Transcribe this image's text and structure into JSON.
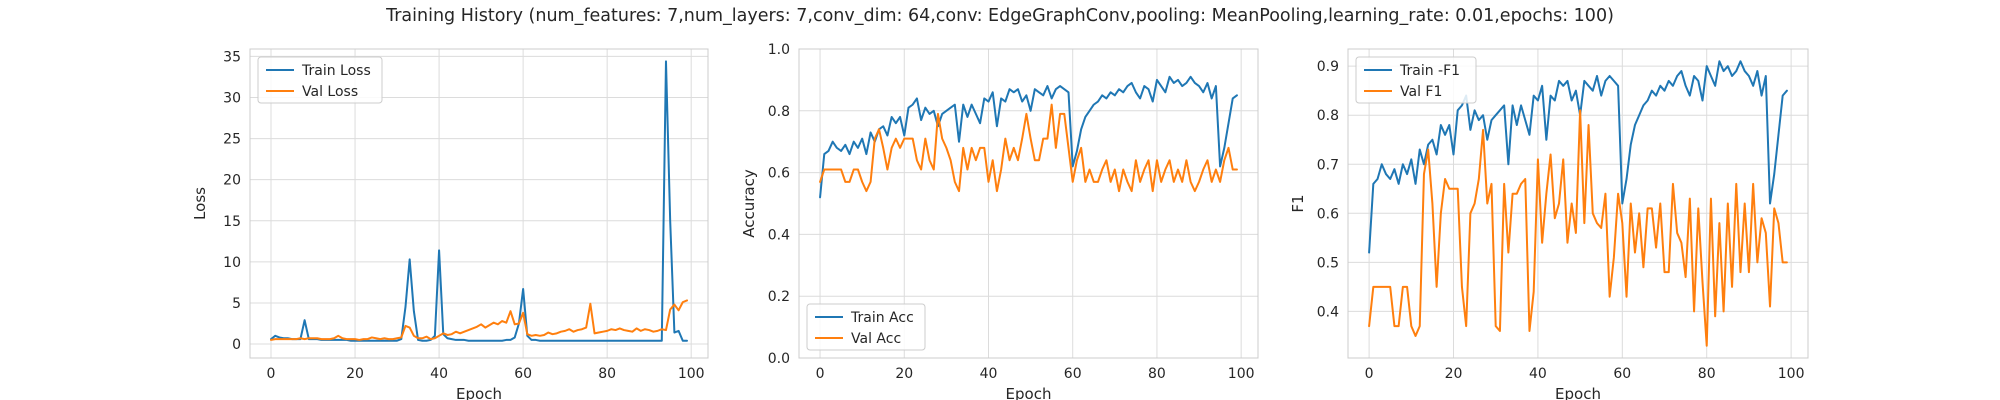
{
  "figure_title": "Training History (num_features: 7,num_layers: 7,conv_dim: 64,conv: EdgeGraphConv,pooling: MeanPooling,learning_rate: 0.01,epochs: 100)",
  "colors": {
    "train": "#1f77b4",
    "val": "#ff7f0e",
    "grid": "#dcdcdc",
    "spine": "#cccccc"
  },
  "chart_data": [
    {
      "type": "line",
      "xlabel": "Epoch",
      "ylabel": "Loss",
      "xlim": [
        -5,
        104
      ],
      "ylim": [
        -1.7,
        35.9
      ],
      "xticks": [
        0,
        20,
        40,
        60,
        80,
        100
      ],
      "yticks": [
        0,
        5,
        10,
        15,
        20,
        25,
        30,
        35
      ],
      "ytick_labels": [
        "0",
        "5",
        "10",
        "15",
        "20",
        "25",
        "30",
        "35"
      ],
      "legend_position": "upper left",
      "series": [
        {
          "name": "Train Loss",
          "color": "#1f77b4",
          "values": [
            0.6,
            1.0,
            0.8,
            0.7,
            0.7,
            0.6,
            0.6,
            0.6,
            2.9,
            0.6,
            0.6,
            0.6,
            0.5,
            0.5,
            0.5,
            0.5,
            0.5,
            0.5,
            0.5,
            0.4,
            0.4,
            0.4,
            0.4,
            0.4,
            0.4,
            0.4,
            0.4,
            0.4,
            0.4,
            0.4,
            0.4,
            0.6,
            4.5,
            10.3,
            4.0,
            0.5,
            0.4,
            0.4,
            0.5,
            1.0,
            11.4,
            1.2,
            0.7,
            0.6,
            0.5,
            0.5,
            0.5,
            0.4,
            0.4,
            0.4,
            0.4,
            0.4,
            0.4,
            0.4,
            0.4,
            0.4,
            0.5,
            0.5,
            0.8,
            2.5,
            6.7,
            1.0,
            0.5,
            0.5,
            0.4,
            0.4,
            0.4,
            0.4,
            0.4,
            0.4,
            0.4,
            0.4,
            0.4,
            0.4,
            0.4,
            0.4,
            0.4,
            0.4,
            0.4,
            0.4,
            0.4,
            0.4,
            0.4,
            0.4,
            0.4,
            0.4,
            0.4,
            0.4,
            0.4,
            0.4,
            0.4,
            0.4,
            0.4,
            0.4,
            34.4,
            15.0,
            1.4,
            1.6,
            0.4,
            0.4
          ]
        },
        {
          "name": "Val Loss",
          "color": "#ff7f0e",
          "values": [
            0.5,
            0.6,
            0.6,
            0.6,
            0.6,
            0.6,
            0.6,
            0.7,
            0.6,
            0.7,
            0.7,
            0.7,
            0.6,
            0.6,
            0.6,
            0.7,
            1.0,
            0.7,
            0.6,
            0.6,
            0.6,
            0.5,
            0.6,
            0.6,
            0.8,
            0.7,
            0.6,
            0.7,
            0.6,
            0.6,
            0.7,
            0.8,
            2.2,
            2.0,
            1.0,
            0.7,
            0.7,
            0.9,
            0.6,
            0.7,
            1.0,
            1.3,
            1.1,
            1.2,
            1.5,
            1.3,
            1.5,
            1.7,
            1.9,
            2.1,
            2.4,
            2.0,
            2.3,
            2.6,
            2.4,
            2.8,
            2.6,
            4.0,
            2.4,
            2.5,
            3.8,
            1.2,
            1.0,
            1.1,
            1.0,
            1.1,
            1.4,
            1.2,
            1.3,
            1.5,
            1.6,
            1.8,
            1.5,
            1.7,
            1.8,
            2.0,
            4.9,
            1.3,
            1.4,
            1.5,
            1.6,
            1.8,
            1.7,
            1.9,
            1.7,
            1.6,
            1.5,
            1.9,
            1.6,
            1.8,
            1.7,
            1.5,
            1.6,
            1.8,
            1.7,
            4.2,
            4.8,
            4.1,
            5.1,
            5.3
          ]
        }
      ]
    },
    {
      "type": "line",
      "xlabel": "Epoch",
      "ylabel": "Accuracy",
      "xlim": [
        -5,
        104
      ],
      "ylim": [
        0.0,
        1.0
      ],
      "xticks": [
        0,
        20,
        40,
        60,
        80,
        100
      ],
      "yticks": [
        0.0,
        0.2,
        0.4,
        0.6,
        0.8,
        1.0
      ],
      "ytick_labels": [
        "0.0",
        "0.2",
        "0.4",
        "0.6",
        "0.8",
        "1.0"
      ],
      "legend_position": "lower left",
      "series": [
        {
          "name": "Train Acc",
          "color": "#1f77b4",
          "values": [
            0.52,
            0.66,
            0.67,
            0.7,
            0.68,
            0.67,
            0.69,
            0.66,
            0.7,
            0.68,
            0.71,
            0.66,
            0.73,
            0.7,
            0.74,
            0.75,
            0.72,
            0.78,
            0.76,
            0.78,
            0.72,
            0.81,
            0.82,
            0.84,
            0.77,
            0.81,
            0.79,
            0.8,
            0.75,
            0.79,
            0.8,
            0.81,
            0.82,
            0.7,
            0.82,
            0.78,
            0.82,
            0.79,
            0.76,
            0.84,
            0.83,
            0.86,
            0.75,
            0.84,
            0.83,
            0.87,
            0.86,
            0.87,
            0.83,
            0.85,
            0.8,
            0.87,
            0.86,
            0.85,
            0.88,
            0.84,
            0.87,
            0.88,
            0.87,
            0.86,
            0.62,
            0.67,
            0.74,
            0.78,
            0.8,
            0.82,
            0.83,
            0.85,
            0.84,
            0.86,
            0.85,
            0.87,
            0.86,
            0.88,
            0.89,
            0.86,
            0.84,
            0.88,
            0.87,
            0.83,
            0.9,
            0.88,
            0.86,
            0.91,
            0.89,
            0.9,
            0.88,
            0.89,
            0.91,
            0.89,
            0.88,
            0.86,
            0.89,
            0.84,
            0.88,
            0.62,
            0.68,
            0.76,
            0.84,
            0.85
          ]
        },
        {
          "name": "Val Acc",
          "color": "#ff7f0e",
          "values": [
            0.57,
            0.61,
            0.61,
            0.61,
            0.61,
            0.61,
            0.57,
            0.57,
            0.61,
            0.61,
            0.57,
            0.54,
            0.57,
            0.71,
            0.74,
            0.68,
            0.61,
            0.68,
            0.71,
            0.68,
            0.71,
            0.71,
            0.71,
            0.64,
            0.61,
            0.71,
            0.64,
            0.61,
            0.79,
            0.71,
            0.68,
            0.64,
            0.57,
            0.54,
            0.68,
            0.61,
            0.68,
            0.64,
            0.68,
            0.68,
            0.57,
            0.64,
            0.54,
            0.61,
            0.71,
            0.64,
            0.68,
            0.64,
            0.71,
            0.79,
            0.71,
            0.64,
            0.64,
            0.71,
            0.71,
            0.82,
            0.68,
            0.79,
            0.79,
            0.68,
            0.57,
            0.64,
            0.68,
            0.57,
            0.61,
            0.57,
            0.57,
            0.61,
            0.64,
            0.57,
            0.61,
            0.54,
            0.61,
            0.57,
            0.54,
            0.64,
            0.57,
            0.61,
            0.64,
            0.54,
            0.64,
            0.57,
            0.61,
            0.64,
            0.57,
            0.61,
            0.57,
            0.64,
            0.57,
            0.54,
            0.57,
            0.61,
            0.64,
            0.57,
            0.61,
            0.57,
            0.64,
            0.68,
            0.61,
            0.61
          ]
        }
      ]
    },
    {
      "type": "line",
      "xlabel": "Epoch",
      "ylabel": "F1",
      "xlim": [
        -5,
        104
      ],
      "ylim": [
        0.305,
        0.935
      ],
      "xticks": [
        0,
        20,
        40,
        60,
        80,
        100
      ],
      "yticks": [
        0.4,
        0.5,
        0.6,
        0.7,
        0.8,
        0.9
      ],
      "ytick_labels": [
        "0.4",
        "0.5",
        "0.6",
        "0.7",
        "0.8",
        "0.9"
      ],
      "legend_position": "upper left",
      "series": [
        {
          "name": "Train -F1",
          "color": "#1f77b4",
          "values": [
            0.52,
            0.66,
            0.67,
            0.7,
            0.68,
            0.67,
            0.69,
            0.66,
            0.7,
            0.68,
            0.71,
            0.66,
            0.73,
            0.7,
            0.74,
            0.75,
            0.72,
            0.78,
            0.76,
            0.78,
            0.72,
            0.81,
            0.82,
            0.84,
            0.77,
            0.81,
            0.79,
            0.8,
            0.75,
            0.79,
            0.8,
            0.81,
            0.82,
            0.7,
            0.82,
            0.78,
            0.82,
            0.79,
            0.76,
            0.84,
            0.83,
            0.86,
            0.75,
            0.84,
            0.83,
            0.87,
            0.86,
            0.87,
            0.83,
            0.85,
            0.8,
            0.87,
            0.86,
            0.85,
            0.88,
            0.84,
            0.87,
            0.88,
            0.87,
            0.86,
            0.62,
            0.67,
            0.74,
            0.78,
            0.8,
            0.82,
            0.83,
            0.85,
            0.84,
            0.86,
            0.85,
            0.87,
            0.86,
            0.88,
            0.89,
            0.86,
            0.84,
            0.88,
            0.87,
            0.83,
            0.9,
            0.88,
            0.86,
            0.91,
            0.89,
            0.9,
            0.88,
            0.89,
            0.91,
            0.89,
            0.88,
            0.86,
            0.89,
            0.84,
            0.88,
            0.62,
            0.68,
            0.76,
            0.84,
            0.85
          ]
        },
        {
          "name": "Val F1",
          "color": "#ff7f0e",
          "values": [
            0.37,
            0.45,
            0.45,
            0.45,
            0.45,
            0.45,
            0.37,
            0.37,
            0.45,
            0.45,
            0.37,
            0.35,
            0.37,
            0.68,
            0.73,
            0.62,
            0.45,
            0.6,
            0.67,
            0.65,
            0.65,
            0.65,
            0.45,
            0.37,
            0.6,
            0.62,
            0.67,
            0.77,
            0.62,
            0.66,
            0.37,
            0.36,
            0.66,
            0.52,
            0.64,
            0.64,
            0.66,
            0.67,
            0.36,
            0.44,
            0.71,
            0.54,
            0.64,
            0.72,
            0.59,
            0.62,
            0.71,
            0.54,
            0.62,
            0.56,
            0.81,
            0.58,
            0.78,
            0.6,
            0.58,
            0.57,
            0.64,
            0.43,
            0.51,
            0.64,
            0.58,
            0.43,
            0.62,
            0.52,
            0.6,
            0.49,
            0.61,
            0.61,
            0.53,
            0.62,
            0.48,
            0.48,
            0.66,
            0.56,
            0.54,
            0.47,
            0.63,
            0.4,
            0.61,
            0.46,
            0.33,
            0.63,
            0.39,
            0.58,
            0.4,
            0.62,
            0.45,
            0.66,
            0.48,
            0.62,
            0.48,
            0.66,
            0.5,
            0.59,
            0.56,
            0.41,
            0.61,
            0.58,
            0.5,
            0.5
          ]
        }
      ]
    }
  ]
}
